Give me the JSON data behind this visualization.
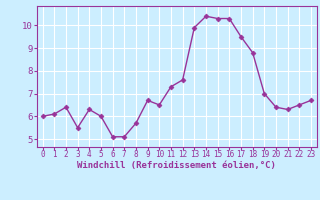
{
  "x": [
    0,
    1,
    2,
    3,
    4,
    5,
    6,
    7,
    8,
    9,
    10,
    11,
    12,
    13,
    14,
    15,
    16,
    17,
    18,
    19,
    20,
    21,
    22,
    23
  ],
  "y": [
    6.0,
    6.1,
    6.4,
    5.5,
    6.3,
    6.0,
    5.1,
    5.1,
    5.7,
    6.7,
    6.5,
    7.3,
    7.6,
    9.9,
    10.4,
    10.3,
    10.3,
    9.5,
    8.8,
    7.0,
    6.4,
    6.3,
    6.5,
    6.7
  ],
  "line_color": "#993399",
  "marker": "D",
  "marker_size": 2.5,
  "bg_color": "#cceeff",
  "grid_color": "#ffffff",
  "tick_color": "#993399",
  "label_color": "#993399",
  "xlabel": "Windchill (Refroidissement éolien,°C)",
  "xlim": [
    -0.5,
    23.5
  ],
  "ylim": [
    4.65,
    10.85
  ],
  "yticks": [
    5,
    6,
    7,
    8,
    9,
    10
  ],
  "xticks": [
    0,
    1,
    2,
    3,
    4,
    5,
    6,
    7,
    8,
    9,
    10,
    11,
    12,
    13,
    14,
    15,
    16,
    17,
    18,
    19,
    20,
    21,
    22,
    23
  ],
  "linewidth": 1.0,
  "xlabel_fontsize": 6.5,
  "tick_fontsize_x": 5.5,
  "tick_fontsize_y": 6.5
}
